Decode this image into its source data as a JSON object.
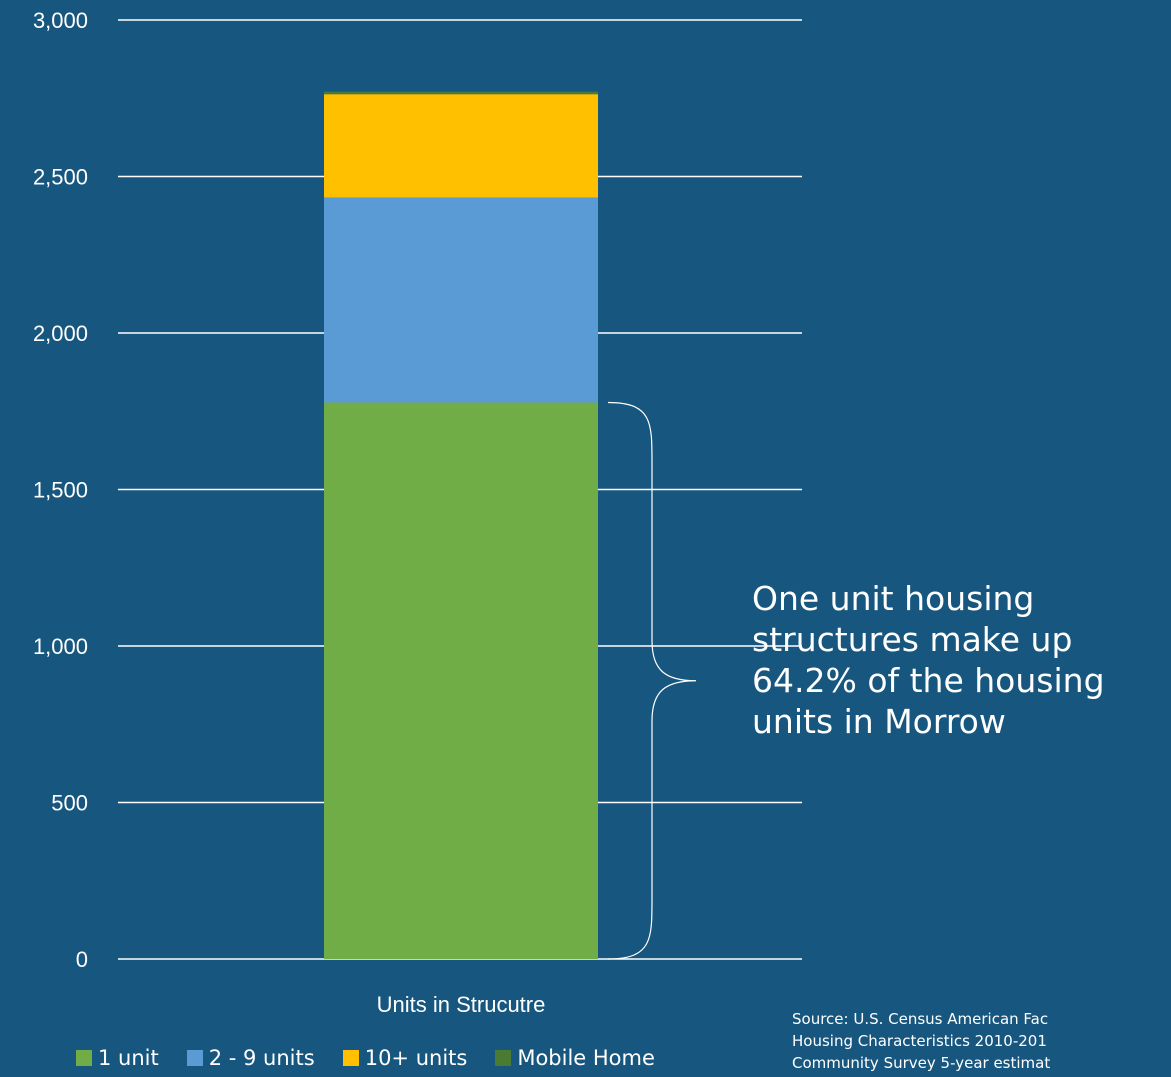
{
  "chart_data": {
    "type": "bar",
    "stacked": true,
    "categories": [
      "Units in Strucutre"
    ],
    "series": [
      {
        "name": "1 unit",
        "values": [
          1778
        ],
        "color": "#70ad47"
      },
      {
        "name": "2 - 9 units",
        "values": [
          655
        ],
        "color": "#5b9bd5"
      },
      {
        "name": "10+ units",
        "values": [
          330
        ],
        "color": "#ffc000"
      },
      {
        "name": "Mobile Home",
        "values": [
          8
        ],
        "color": "#4b7a33"
      }
    ],
    "ylim": [
      0,
      3000
    ],
    "yticks": [
      0,
      500,
      1000,
      1500,
      2000,
      2500,
      3000
    ],
    "ytick_labels": [
      "0",
      "500",
      "1,000",
      "1,500",
      "2,000",
      "2,500",
      "3,000"
    ],
    "grid": true,
    "legend_position": "bottom-left"
  },
  "annotation": {
    "text": "One unit housing structures make up 64.2% of the housing units in Morrow"
  },
  "source": {
    "text": "Source: U.S. Census American Fac\nHousing Characteristics 2010-201\nCommunity Survey 5-year estimat"
  },
  "colors": {
    "background": "#17577f",
    "gridline": "#ffffff"
  }
}
